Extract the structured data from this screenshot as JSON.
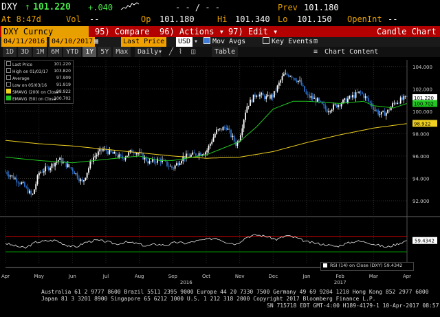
{
  "header": {
    "ticker": "DXY",
    "arrow": "↑",
    "last": "101.220",
    "change": "+.040",
    "time": "At 8:47d",
    "vol_label": "Vol",
    "vol_value": "--",
    "op_label": "Op",
    "op_value": "101.180",
    "hi_label": "Hi",
    "hi_value": "101.340",
    "lo_label": "Lo",
    "lo_value": "101.150",
    "prev_label": "Prev",
    "prev_value": "101.180",
    "openint_label": "OpenInt",
    "openint_value": "--",
    "dashes": "- - / - -"
  },
  "toolbar": {
    "security": "DXY Curncy",
    "compare": "95) Compare",
    "actions": "96) Actions ▾",
    "edit": "97) Edit ▾",
    "title": "Candle Chart",
    "start_date": "04/11/2016",
    "end_date": "04/10/2017",
    "price_field": "Last Price",
    "currency": "USD",
    "mov_avgs": "Mov Avgs",
    "key_events": "Key Events",
    "chart_content": "Chart Content",
    "table": "Table",
    "period": "Daily",
    "ranges": [
      "1D",
      "3D",
      "1M",
      "6M",
      "YTD",
      "1Y",
      "5Y",
      "Max"
    ],
    "active_range": "1Y"
  },
  "legend": {
    "items": [
      {
        "label": "Last Price",
        "value": "101.220",
        "color": "#ffffff"
      },
      {
        "label": "High on 01/03/17",
        "value": "103.820",
        "color": "#ffffff"
      },
      {
        "label": "Average",
        "value": "97.909",
        "color": "#ffffff"
      },
      {
        "label": "Low on 05/03/16",
        "value": "91.919",
        "color": "#ffffff"
      },
      {
        "label": "SMAVG (200) on Close",
        "value": "98.922",
        "color": "#f0d020"
      },
      {
        "label": "EMAVG (50) on Close",
        "value": "100.702",
        "color": "#22c822"
      }
    ]
  },
  "rsi_legend": "RSI (14) on Close (DXY) 59.4342",
  "footer": {
    "line1": "Australia 61 2 9777 8600 Brazil 5511 2395 9000 Europe 44 20 7330 7500 Germany 49 69 9204 1210 Hong Kong 852 2977 6000",
    "line2": "Japan 81 3 3201 8900        Singapore 65 6212 1000      U.S. 1 212 318 2000          Copyright 2017 Bloomberg Finance L.P.",
    "line3": "SN 715718 EDT  GMT-4:00 H189-4179-1 10-Apr-2017 08:57:25"
  },
  "chart_data": {
    "type": "candlestick",
    "x_tick_labels": [
      "Apr",
      "May",
      "Jun",
      "Jul",
      "Aug",
      "Sep",
      "Oct",
      "Nov",
      "Dec",
      "Jan",
      "Feb",
      "Mar",
      "Apr"
    ],
    "year_labels": [
      "2016",
      "2017"
    ],
    "y_tick_labels": [
      "92.000",
      "94.000",
      "96.000",
      "98.000",
      "100.000",
      "102.000",
      "104.000"
    ],
    "ylim": [
      91.2,
      104.6
    ],
    "right_labels": [
      {
        "text": "101.220",
        "value": 101.22,
        "bg": "#ffffff",
        "fg": "#000000"
      },
      {
        "text": "100.702",
        "value": 100.702,
        "bg": "#22c822",
        "fg": "#000000"
      },
      {
        "text": "98.922",
        "value": 98.922,
        "bg": "#f0d020",
        "fg": "#000000"
      }
    ],
    "rsi_value_label": "59.4342",
    "rsi_levels": [
      70,
      30
    ],
    "colors": {
      "up": "#ffffff",
      "down": "#2d6fc9",
      "ema": "#22c822",
      "sma": "#f0d020",
      "rsi": "#e8e8e8",
      "rsi_upper": "#d00000",
      "rsi_lower": "#00c000"
    },
    "series": [
      {
        "name": "Last Price",
        "x_months": [
          0,
          0.5,
          0.8,
          1.0,
          1.3,
          1.6,
          2.0,
          2.3,
          2.6,
          2.9,
          3.2,
          3.5,
          3.8,
          4.0,
          4.3,
          4.6,
          5.0,
          5.3,
          5.6,
          6.0,
          6.3,
          6.6,
          6.9,
          7.0,
          7.2,
          7.5,
          7.8,
          8.0,
          8.3,
          8.5,
          8.8,
          9.0,
          9.3,
          9.6,
          10.0,
          10.3,
          10.6,
          10.8,
          11.0,
          11.2,
          11.4,
          11.6,
          11.8,
          12.0
        ],
        "values": [
          94.6,
          93.5,
          92.4,
          94.5,
          95.0,
          95.7,
          94.8,
          93.6,
          95.8,
          96.6,
          96.2,
          95.8,
          96.5,
          96.2,
          95.4,
          95.7,
          94.9,
          95.9,
          96.1,
          96.4,
          98.2,
          98.6,
          97.0,
          97.7,
          100.4,
          101.6,
          101.2,
          101.4,
          103.2,
          103.3,
          102.6,
          101.4,
          101.0,
          100.1,
          100.7,
          101.2,
          101.7,
          101.1,
          100.3,
          99.7,
          99.9,
          100.7,
          101.0,
          101.2
        ]
      },
      {
        "name": "EMAVG (50) on Close",
        "x_months": [
          0,
          1,
          2,
          3,
          4,
          4.6,
          5,
          6,
          7,
          7.5,
          8,
          8.6,
          9,
          10,
          10.7,
          11,
          11.6,
          12
        ],
        "values": [
          95.9,
          95.6,
          95.4,
          95.7,
          96.0,
          95.6,
          95.6,
          96.1,
          97.3,
          98.6,
          100.2,
          100.9,
          100.9,
          100.7,
          100.9,
          100.5,
          100.3,
          100.7
        ]
      },
      {
        "name": "SMAVG (200) on Close",
        "x_months": [
          0,
          1,
          2,
          3,
          4,
          5,
          6,
          7,
          8,
          9,
          10,
          11,
          12
        ],
        "values": [
          97.4,
          97.1,
          96.9,
          96.6,
          96.3,
          96.0,
          95.8,
          95.9,
          96.4,
          97.2,
          97.9,
          98.5,
          98.9
        ]
      },
      {
        "name": "RSI (14) on Close (DXY)",
        "x_months": [
          0,
          0.3,
          0.6,
          0.9,
          1.2,
          1.5,
          1.8,
          2.1,
          2.4,
          2.7,
          3.0,
          3.3,
          3.6,
          3.9,
          4.2,
          4.5,
          4.8,
          5.1,
          5.4,
          5.7,
          6.0,
          6.3,
          6.6,
          6.9,
          7.2,
          7.5,
          7.8,
          8.1,
          8.4,
          8.7,
          9.0,
          9.3,
          9.6,
          9.9,
          10.2,
          10.5,
          10.8,
          11.1,
          11.4,
          11.7,
          12.0
        ],
        "values": [
          52,
          45,
          40,
          55,
          58,
          60,
          48,
          42,
          55,
          60,
          57,
          50,
          55,
          52,
          45,
          50,
          47,
          55,
          52,
          58,
          62,
          66,
          55,
          50,
          68,
          74,
          70,
          62,
          72,
          66,
          56,
          52,
          48,
          44,
          52,
          58,
          55,
          48,
          42,
          50,
          59.4
        ]
      }
    ]
  }
}
